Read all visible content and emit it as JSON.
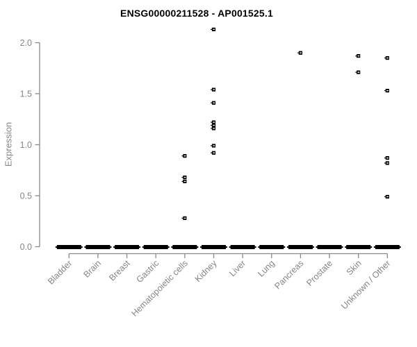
{
  "chart_data": {
    "type": "scatter",
    "subtype": "strip-plot-with-collapsed-zero-boxes",
    "title": "ENSG00000211528 - AP001525.1",
    "ylabel": "Expression",
    "xlabel": "",
    "ylim": [
      0.0,
      2.15
    ],
    "yticks": [
      "0.0",
      "0.5",
      "1.0",
      "1.5",
      "2.0"
    ],
    "ytick_values": [
      0,
      0.5,
      1,
      1.5,
      2
    ],
    "grid": false,
    "legend": "none",
    "categories": [
      "Bladder",
      "Brain",
      "Breast",
      "Gastric",
      "Hematopoietic cells",
      "Kidney",
      "Liver",
      "Lung",
      "Pancreas",
      "Prostate",
      "Skin",
      "Unknown / Other"
    ],
    "series": [
      {
        "category": "Bladder",
        "zero_cluster": true,
        "points": []
      },
      {
        "category": "Brain",
        "zero_cluster": true,
        "points": []
      },
      {
        "category": "Breast",
        "zero_cluster": true,
        "points": []
      },
      {
        "category": "Gastric",
        "zero_cluster": true,
        "points": []
      },
      {
        "category": "Hematopoietic cells",
        "zero_cluster": true,
        "points": [
          0.89,
          0.68,
          0.64,
          0.28
        ]
      },
      {
        "category": "Kidney",
        "zero_cluster": true,
        "points": [
          2.13,
          1.54,
          1.41,
          1.22,
          1.19,
          1.16,
          0.99,
          0.92
        ]
      },
      {
        "category": "Liver",
        "zero_cluster": true,
        "points": []
      },
      {
        "category": "Lung",
        "zero_cluster": true,
        "points": []
      },
      {
        "category": "Pancreas",
        "zero_cluster": true,
        "points": [
          1.9
        ]
      },
      {
        "category": "Prostate",
        "zero_cluster": true,
        "points": []
      },
      {
        "category": "Skin",
        "zero_cluster": true,
        "points": [
          1.87,
          1.71
        ]
      },
      {
        "category": "Unknown / Other",
        "zero_cluster": true,
        "points": [
          1.85,
          1.53,
          0.87,
          0.82,
          0.49
        ]
      }
    ],
    "colors": {
      "point": "#000000",
      "zero_bar": "#000000",
      "axis": "#888888",
      "tick_label": "#848484",
      "title": "#000000",
      "background": "#ffffff"
    }
  }
}
